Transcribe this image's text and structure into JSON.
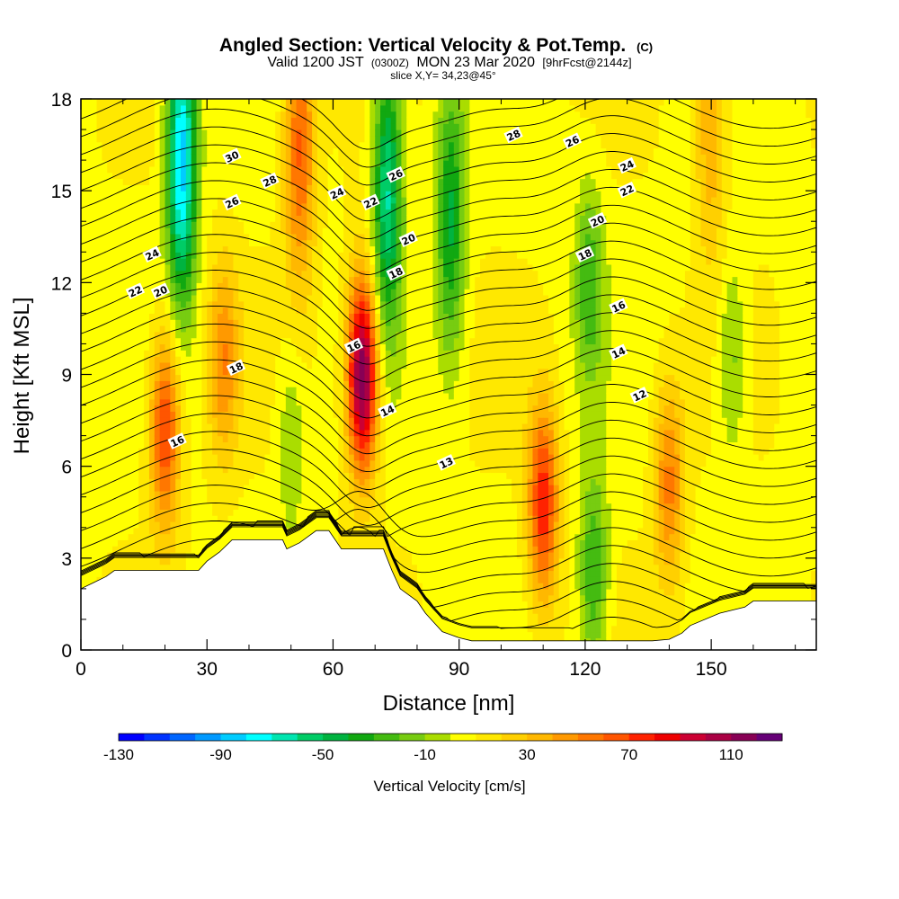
{
  "chart_data": {
    "type": "heatmap",
    "title": "Angled Section: Vertical Velocity & Pot.Temp.",
    "title_suffix": "(C)",
    "subtitle": {
      "prefix": "Valid 1200 JST",
      "utc": "(0300Z)",
      "date": "MON 23 Mar 2020",
      "forecast": "[9hrFcst@2144z]"
    },
    "slice_label": "slice X,Y= 34,23@45°",
    "xlabel": "Distance [nm]",
    "ylabel": "Height [Kft MSL]",
    "xlim": [
      0,
      175
    ],
    "ylim": [
      0,
      18
    ],
    "x_ticks": [
      0,
      30,
      60,
      90,
      120,
      150
    ],
    "y_ticks": [
      0,
      3,
      6,
      9,
      12,
      15,
      18
    ],
    "colorbar": {
      "label": "Vertical Velocity [cm/s]",
      "min": -130,
      "max": 120,
      "step": 10,
      "tick_values": [
        -130,
        -90,
        -50,
        -10,
        30,
        70,
        110
      ],
      "tick_labels": [
        "-130",
        "-90",
        "-50",
        "-10",
        "30",
        "70",
        "110"
      ],
      "colors": [
        "#0000ff",
        "#0033ff",
        "#0066ff",
        "#0099ff",
        "#00ccff",
        "#00ffff",
        "#00e5b0",
        "#00cc66",
        "#00b340",
        "#11a811",
        "#44bb11",
        "#77cc11",
        "#aadd00",
        "#ffff00",
        "#ffe800",
        "#ffd000",
        "#ffb800",
        "#ff9900",
        "#ff7700",
        "#ff5500",
        "#ff2200",
        "#ee0000",
        "#cc0033",
        "#aa0044",
        "#880055",
        "#660077"
      ]
    },
    "updrafts": [
      {
        "x": 20,
        "z": 7.2,
        "peak": 65
      },
      {
        "x": 34,
        "z": 9.5,
        "peak": 40
      },
      {
        "x": 67,
        "z": 9.0,
        "peak": 115
      },
      {
        "x": 52,
        "z": 16.5,
        "peak": 55
      },
      {
        "x": 110,
        "z": 4.8,
        "peak": 70
      },
      {
        "x": 140,
        "z": 5.5,
        "peak": 45
      },
      {
        "x": 150,
        "z": 17.5,
        "peak": 35
      }
    ],
    "downdrafts": [
      {
        "x": 24,
        "z": 16.0,
        "peak": -95
      },
      {
        "x": 73,
        "z": 15.0,
        "peak": -70
      },
      {
        "x": 88,
        "z": 14.0,
        "peak": -50
      },
      {
        "x": 121,
        "z": 12.0,
        "peak": -35
      },
      {
        "x": 122,
        "z": 2.5,
        "peak": -40
      },
      {
        "x": 155,
        "z": 9.5,
        "peak": -25
      },
      {
        "x": 50,
        "z": 7.0,
        "peak": -18
      }
    ],
    "terrain": {
      "x": [
        0,
        3,
        6,
        8,
        14,
        28,
        30,
        33,
        36,
        48,
        49,
        52,
        56,
        59,
        62,
        65,
        72,
        74,
        76,
        80,
        82,
        84,
        86,
        88,
        90,
        93,
        96,
        100,
        104,
        108,
        112,
        116,
        120,
        124,
        128,
        132,
        136,
        140,
        143,
        145,
        152,
        158,
        160,
        175
      ],
      "z": [
        2.0,
        2.2,
        2.4,
        2.6,
        2.6,
        2.6,
        2.9,
        3.2,
        3.6,
        3.6,
        3.3,
        3.5,
        3.9,
        3.9,
        3.3,
        3.3,
        3.3,
        2.6,
        2.0,
        1.6,
        1.2,
        0.9,
        0.6,
        0.5,
        0.4,
        0.3,
        0.3,
        0.3,
        0.3,
        0.3,
        0.3,
        0.3,
        0.3,
        0.3,
        0.3,
        0.3,
        0.3,
        0.35,
        0.55,
        0.8,
        1.2,
        1.4,
        1.6,
        1.6
      ]
    },
    "isentropes": [
      {
        "theta": 12,
        "label_x": 133,
        "label_z": 8.3
      },
      {
        "theta": 13,
        "label_x": 87,
        "label_z": 6.1
      },
      {
        "theta": 14,
        "label_x": 73,
        "label_z": 7.8
      },
      {
        "theta": 14,
        "label_x": 128,
        "label_z": 9.7
      },
      {
        "theta": 16,
        "label_x": 23,
        "label_z": 6.8
      },
      {
        "theta": 16,
        "label_x": 65,
        "label_z": 9.9
      },
      {
        "theta": 16,
        "label_x": 128,
        "label_z": 11.2
      },
      {
        "theta": 18,
        "label_x": 37,
        "label_z": 9.2
      },
      {
        "theta": 18,
        "label_x": 75,
        "label_z": 12.3
      },
      {
        "theta": 18,
        "label_x": 120,
        "label_z": 12.9
      },
      {
        "theta": 20,
        "label_x": 19,
        "label_z": 11.7
      },
      {
        "theta": 20,
        "label_x": 78,
        "label_z": 13.4
      },
      {
        "theta": 20,
        "label_x": 123,
        "label_z": 14.0
      },
      {
        "theta": 22,
        "label_x": 13,
        "label_z": 11.7
      },
      {
        "theta": 22,
        "label_x": 69,
        "label_z": 14.6
      },
      {
        "theta": 22,
        "label_x": 130,
        "label_z": 15.0
      },
      {
        "theta": 24,
        "label_x": 17,
        "label_z": 12.9
      },
      {
        "theta": 24,
        "label_x": 61,
        "label_z": 14.9
      },
      {
        "theta": 24,
        "label_x": 130,
        "label_z": 15.8
      },
      {
        "theta": 26,
        "label_x": 36,
        "label_z": 14.6
      },
      {
        "theta": 26,
        "label_x": 75,
        "label_z": 15.5
      },
      {
        "theta": 26,
        "label_x": 117,
        "label_z": 16.6
      },
      {
        "theta": 28,
        "label_x": 45,
        "label_z": 15.3
      },
      {
        "theta": 28,
        "label_x": 103,
        "label_z": 16.8
      },
      {
        "theta": 30,
        "label_x": 36,
        "label_z": 16.1
      }
    ]
  }
}
